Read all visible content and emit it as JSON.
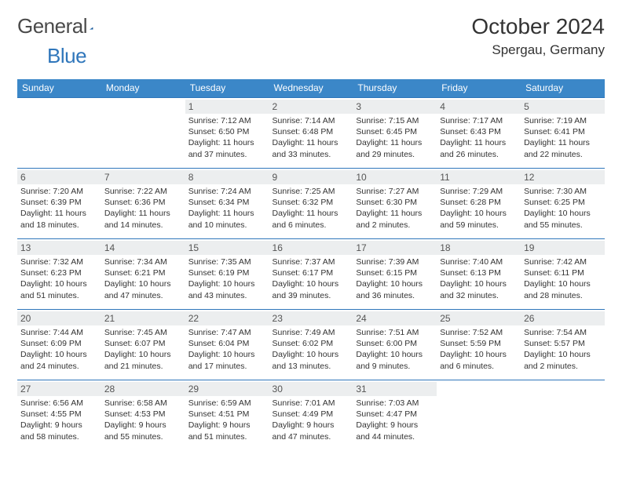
{
  "brand": {
    "left": "General",
    "right": "Blue"
  },
  "title": "October 2024",
  "location": "Spergau, Germany",
  "colors": {
    "header_bg": "#3b87c8",
    "header_text": "#ffffff",
    "border": "#2f76bb",
    "daynum_bg": "#eceeef",
    "logo_gray": "#4a4a4a",
    "logo_blue": "#2f76bb"
  },
  "weekdays": [
    "Sunday",
    "Monday",
    "Tuesday",
    "Wednesday",
    "Thursday",
    "Friday",
    "Saturday"
  ],
  "layout": {
    "first_weekday_index": 2,
    "days_in_month": 31
  },
  "days": [
    {
      "n": 1,
      "sr": "7:12 AM",
      "ss": "6:50 PM",
      "dl": "11 hours and 37 minutes."
    },
    {
      "n": 2,
      "sr": "7:14 AM",
      "ss": "6:48 PM",
      "dl": "11 hours and 33 minutes."
    },
    {
      "n": 3,
      "sr": "7:15 AM",
      "ss": "6:45 PM",
      "dl": "11 hours and 29 minutes."
    },
    {
      "n": 4,
      "sr": "7:17 AM",
      "ss": "6:43 PM",
      "dl": "11 hours and 26 minutes."
    },
    {
      "n": 5,
      "sr": "7:19 AM",
      "ss": "6:41 PM",
      "dl": "11 hours and 22 minutes."
    },
    {
      "n": 6,
      "sr": "7:20 AM",
      "ss": "6:39 PM",
      "dl": "11 hours and 18 minutes."
    },
    {
      "n": 7,
      "sr": "7:22 AM",
      "ss": "6:36 PM",
      "dl": "11 hours and 14 minutes."
    },
    {
      "n": 8,
      "sr": "7:24 AM",
      "ss": "6:34 PM",
      "dl": "11 hours and 10 minutes."
    },
    {
      "n": 9,
      "sr": "7:25 AM",
      "ss": "6:32 PM",
      "dl": "11 hours and 6 minutes."
    },
    {
      "n": 10,
      "sr": "7:27 AM",
      "ss": "6:30 PM",
      "dl": "11 hours and 2 minutes."
    },
    {
      "n": 11,
      "sr": "7:29 AM",
      "ss": "6:28 PM",
      "dl": "10 hours and 59 minutes."
    },
    {
      "n": 12,
      "sr": "7:30 AM",
      "ss": "6:25 PM",
      "dl": "10 hours and 55 minutes."
    },
    {
      "n": 13,
      "sr": "7:32 AM",
      "ss": "6:23 PM",
      "dl": "10 hours and 51 minutes."
    },
    {
      "n": 14,
      "sr": "7:34 AM",
      "ss": "6:21 PM",
      "dl": "10 hours and 47 minutes."
    },
    {
      "n": 15,
      "sr": "7:35 AM",
      "ss": "6:19 PM",
      "dl": "10 hours and 43 minutes."
    },
    {
      "n": 16,
      "sr": "7:37 AM",
      "ss": "6:17 PM",
      "dl": "10 hours and 39 minutes."
    },
    {
      "n": 17,
      "sr": "7:39 AM",
      "ss": "6:15 PM",
      "dl": "10 hours and 36 minutes."
    },
    {
      "n": 18,
      "sr": "7:40 AM",
      "ss": "6:13 PM",
      "dl": "10 hours and 32 minutes."
    },
    {
      "n": 19,
      "sr": "7:42 AM",
      "ss": "6:11 PM",
      "dl": "10 hours and 28 minutes."
    },
    {
      "n": 20,
      "sr": "7:44 AM",
      "ss": "6:09 PM",
      "dl": "10 hours and 24 minutes."
    },
    {
      "n": 21,
      "sr": "7:45 AM",
      "ss": "6:07 PM",
      "dl": "10 hours and 21 minutes."
    },
    {
      "n": 22,
      "sr": "7:47 AM",
      "ss": "6:04 PM",
      "dl": "10 hours and 17 minutes."
    },
    {
      "n": 23,
      "sr": "7:49 AM",
      "ss": "6:02 PM",
      "dl": "10 hours and 13 minutes."
    },
    {
      "n": 24,
      "sr": "7:51 AM",
      "ss": "6:00 PM",
      "dl": "10 hours and 9 minutes."
    },
    {
      "n": 25,
      "sr": "7:52 AM",
      "ss": "5:59 PM",
      "dl": "10 hours and 6 minutes."
    },
    {
      "n": 26,
      "sr": "7:54 AM",
      "ss": "5:57 PM",
      "dl": "10 hours and 2 minutes."
    },
    {
      "n": 27,
      "sr": "6:56 AM",
      "ss": "4:55 PM",
      "dl": "9 hours and 58 minutes."
    },
    {
      "n": 28,
      "sr": "6:58 AM",
      "ss": "4:53 PM",
      "dl": "9 hours and 55 minutes."
    },
    {
      "n": 29,
      "sr": "6:59 AM",
      "ss": "4:51 PM",
      "dl": "9 hours and 51 minutes."
    },
    {
      "n": 30,
      "sr": "7:01 AM",
      "ss": "4:49 PM",
      "dl": "9 hours and 47 minutes."
    },
    {
      "n": 31,
      "sr": "7:03 AM",
      "ss": "4:47 PM",
      "dl": "9 hours and 44 minutes."
    }
  ],
  "labels": {
    "sunrise": "Sunrise:",
    "sunset": "Sunset:",
    "daylight": "Daylight:"
  }
}
